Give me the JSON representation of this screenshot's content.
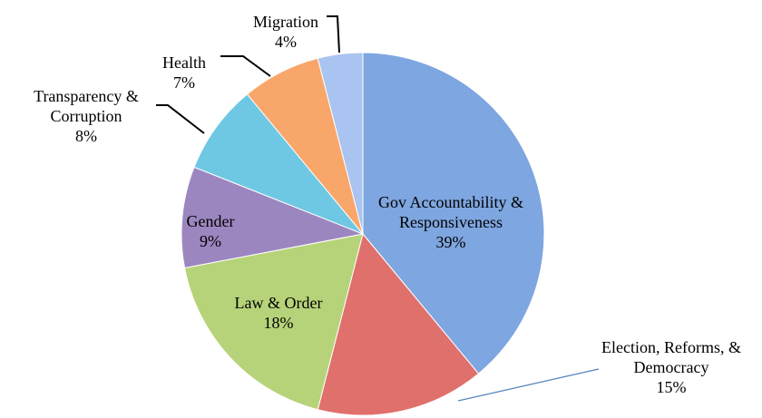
{
  "chart_data": {
    "type": "pie",
    "categories": [
      "Gov Accountability & Responsiveness",
      "Election, Reforms, & Democracy",
      "Law & Order",
      "Gender",
      "Transparency & Corruption",
      "Health",
      "Migration"
    ],
    "values": [
      39,
      15,
      18,
      9,
      8,
      7,
      4
    ],
    "value_labels": [
      "39%",
      "15%",
      "18%",
      "9%",
      "8%",
      "7%",
      "4%"
    ],
    "colors": [
      "#7ea6e0",
      "#e0706c",
      "#b6d37a",
      "#9c86bf",
      "#6fc8e3",
      "#f9a66b",
      "#a9c4f0"
    ]
  }
}
